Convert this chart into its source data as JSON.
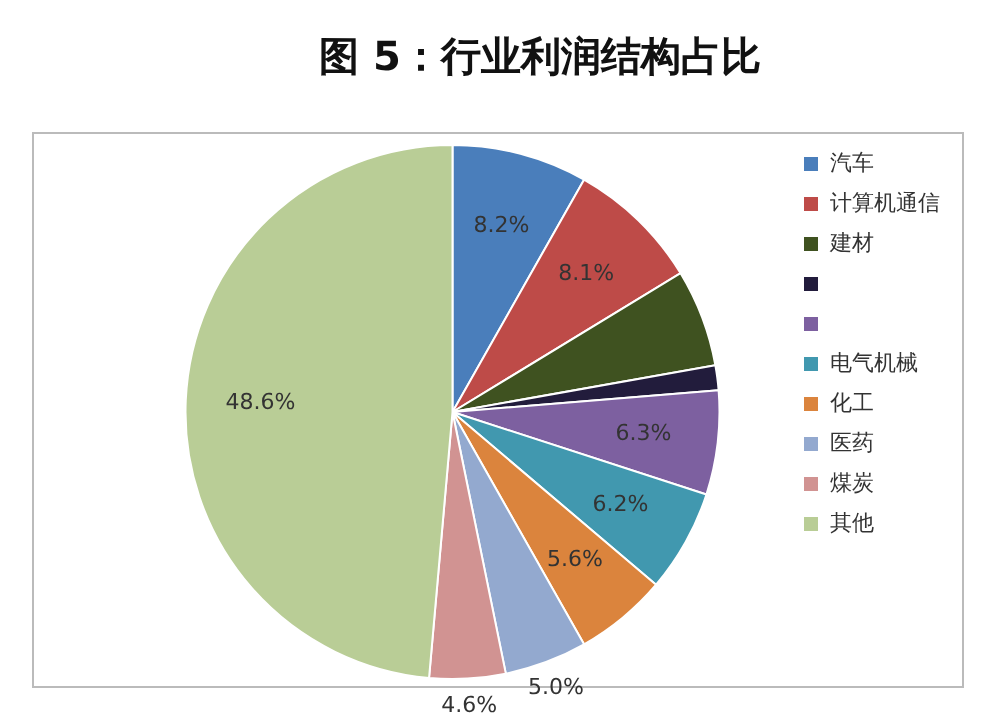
{
  "chart_data": {
    "type": "pie",
    "title": "图 5：行业利润结构占比",
    "categories": [
      "汽车",
      "计算机通信",
      "建材",
      null,
      null,
      "电气机械",
      "化工",
      "医药",
      "煤炭",
      "其他"
    ],
    "values": [
      8.2,
      8.1,
      5.9,
      1.5,
      6.3,
      6.2,
      5.6,
      5.0,
      4.6,
      48.6
    ],
    "value_labels": [
      "8.2%",
      "8.1%",
      null,
      null,
      "6.3%",
      "6.2%",
      "5.6%",
      "5.0%",
      "4.6%",
      "48.6%"
    ],
    "colors": [
      "#4a7ebb",
      "#be4b48",
      "#3f5220",
      "#221c3c",
      "#7d60a0",
      "#4198af",
      "#db843d",
      "#93a9cf",
      "#d19392",
      "#b9cd96"
    ],
    "legend": "right"
  }
}
